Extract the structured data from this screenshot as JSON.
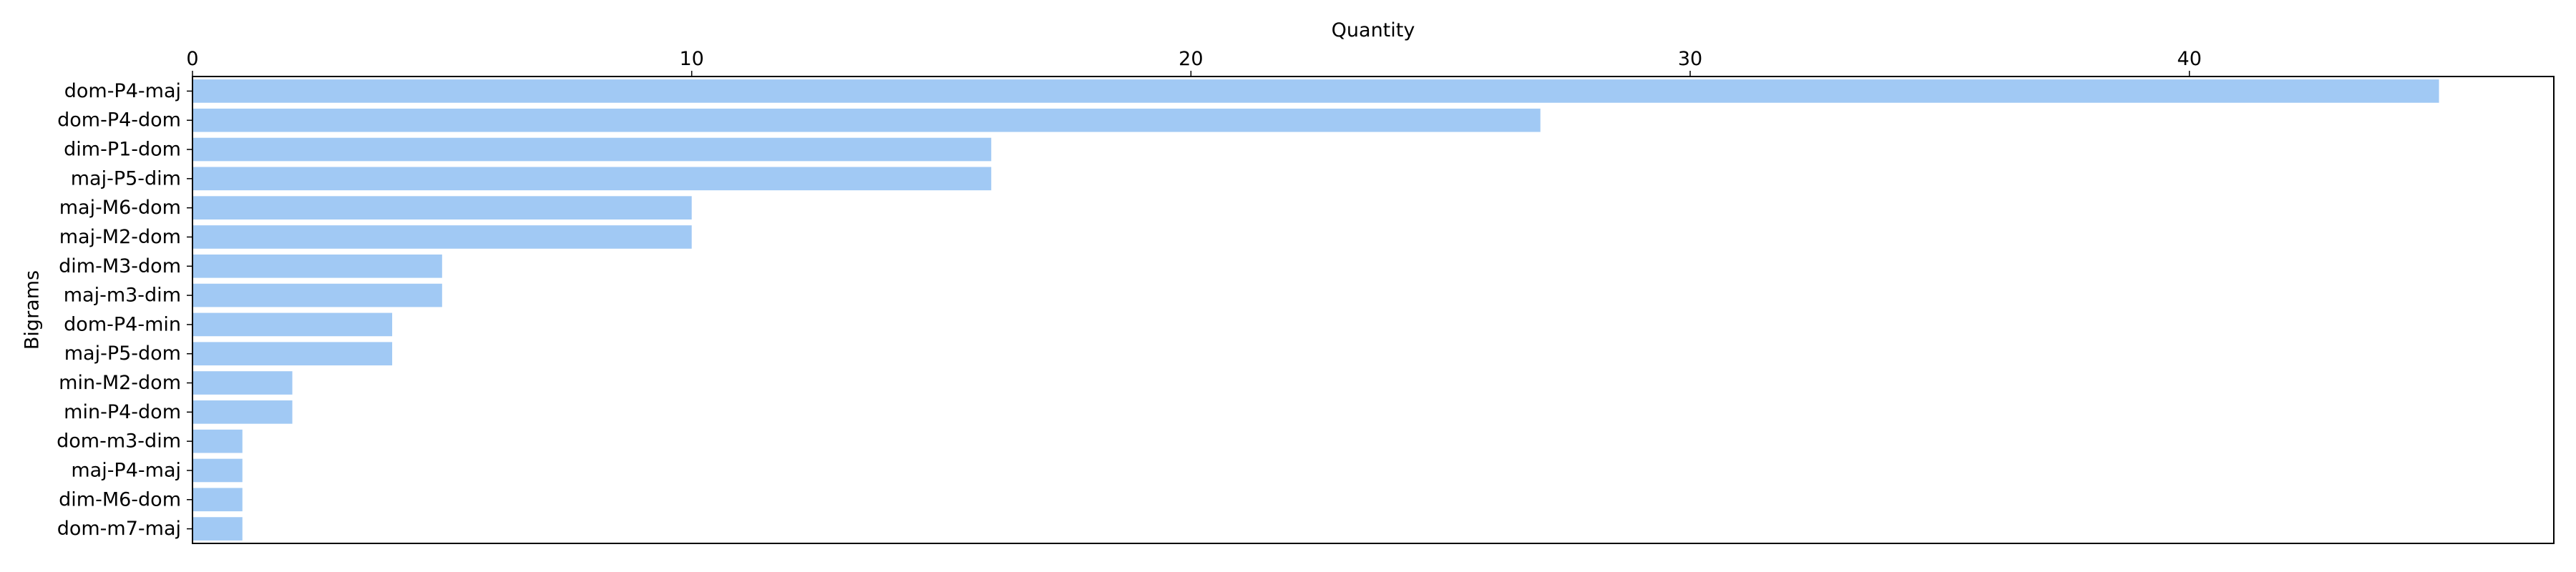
{
  "chart_data": {
    "type": "bar",
    "orientation": "horizontal",
    "xlabel": "Quantity",
    "ylabel": "Bigrams",
    "xaxis_position": "top",
    "xlim": [
      0,
      47.3
    ],
    "xticks": [
      0,
      10,
      20,
      30,
      40
    ],
    "grid": false,
    "legend": "none",
    "bar_color": "#a1c9f4",
    "categories": [
      "dom-P4-maj",
      "dom-P4-dom",
      "dim-P1-dom",
      "maj-P5-dim",
      "maj-M6-dom",
      "maj-M2-dom",
      "dim-M3-dom",
      "maj-m3-dim",
      "dom-P4-min",
      "maj-P5-dom",
      "min-M2-dom",
      "min-P4-dom",
      "dom-m3-dim",
      "maj-P4-maj",
      "dim-M6-dom",
      "dom-m7-maj"
    ],
    "values": [
      45,
      27,
      16,
      16,
      10,
      10,
      5,
      5,
      4,
      4,
      2,
      2,
      1,
      1,
      1,
      1
    ]
  }
}
